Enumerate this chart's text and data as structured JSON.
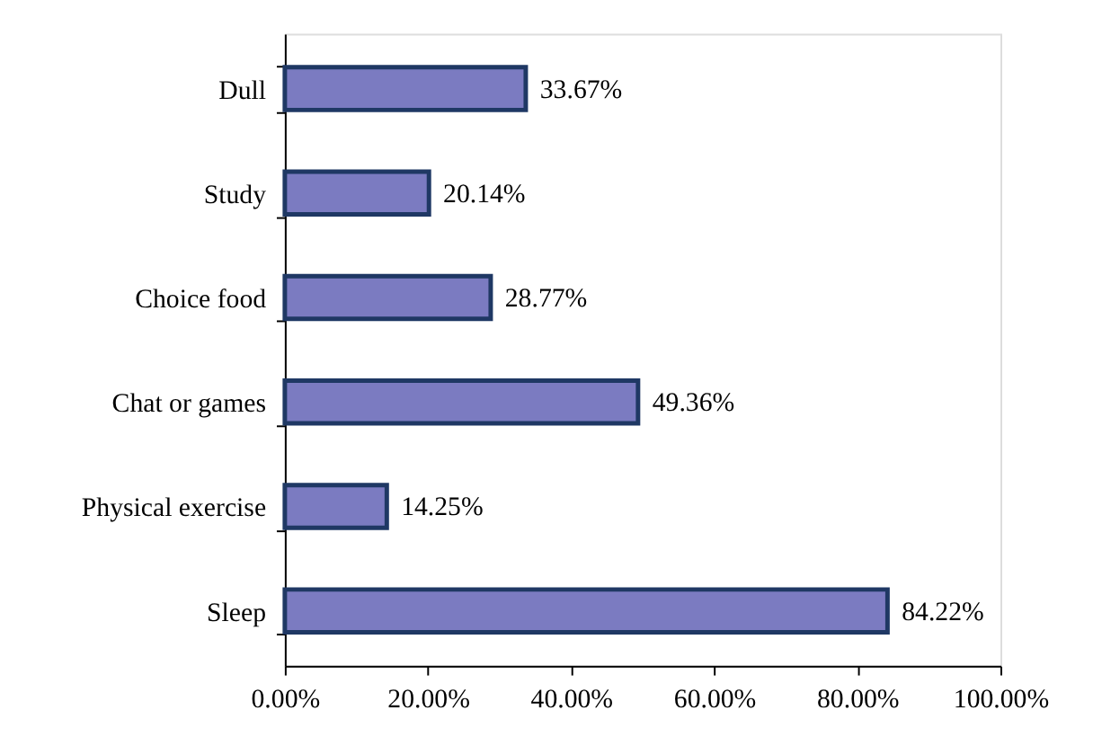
{
  "chart_data": {
    "type": "bar",
    "orientation": "horizontal",
    "categories": [
      "Dull",
      "Study",
      "Choice food",
      "Chat or games",
      "Physical exercise",
      "Sleep"
    ],
    "values": [
      33.67,
      20.14,
      28.77,
      49.36,
      14.25,
      84.22
    ],
    "value_labels": [
      "33.67%",
      "20.14%",
      "28.77%",
      "49.36%",
      "14.25%",
      "84.22%"
    ],
    "color": "#7b7bc1",
    "xlim": [
      0,
      100
    ],
    "xticks": [
      {
        "value": 0,
        "label": "0.00%"
      },
      {
        "value": 20,
        "label": "20.00%"
      },
      {
        "value": 40,
        "label": "40.00%"
      },
      {
        "value": 60,
        "label": "60.00%"
      },
      {
        "value": 80,
        "label": "80.00%"
      },
      {
        "value": 100,
        "label": "100.00%"
      }
    ],
    "grid": false
  }
}
